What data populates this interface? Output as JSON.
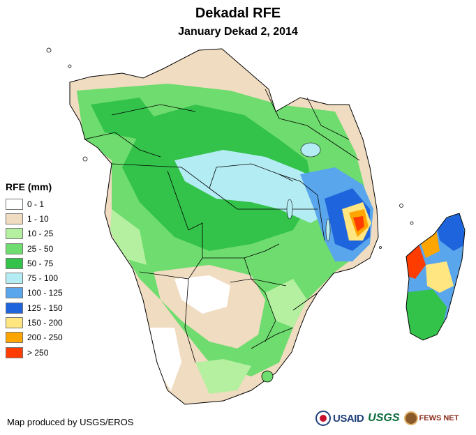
{
  "title": "Dekadal RFE",
  "subtitle": "January Dekad 2, 2014",
  "legend": {
    "title": "RFE (mm)",
    "items": [
      {
        "label": "0 - 1",
        "color": "#ffffff"
      },
      {
        "label": "1 - 10",
        "color": "#f0dcc0"
      },
      {
        "label": "10 - 25",
        "color": "#b4f0a0"
      },
      {
        "label": "25 - 50",
        "color": "#6edc6e"
      },
      {
        "label": "50 - 75",
        "color": "#33c24a"
      },
      {
        "label": "75 - 100",
        "color": "#b4ecf4"
      },
      {
        "label": "100 - 125",
        "color": "#5aa6ec"
      },
      {
        "label": "125 - 150",
        "color": "#1e64dc"
      },
      {
        "label": "150 - 200",
        "color": "#ffe680"
      },
      {
        "label": "200 - 250",
        "color": "#ffa500"
      },
      {
        "label": "> 250",
        "color": "#ff3c00"
      }
    ]
  },
  "credit": "Map produced by USGS/EROS",
  "logos": {
    "usaid": "USAID",
    "usgs": "USGS",
    "fews": "FEWS NET"
  }
}
